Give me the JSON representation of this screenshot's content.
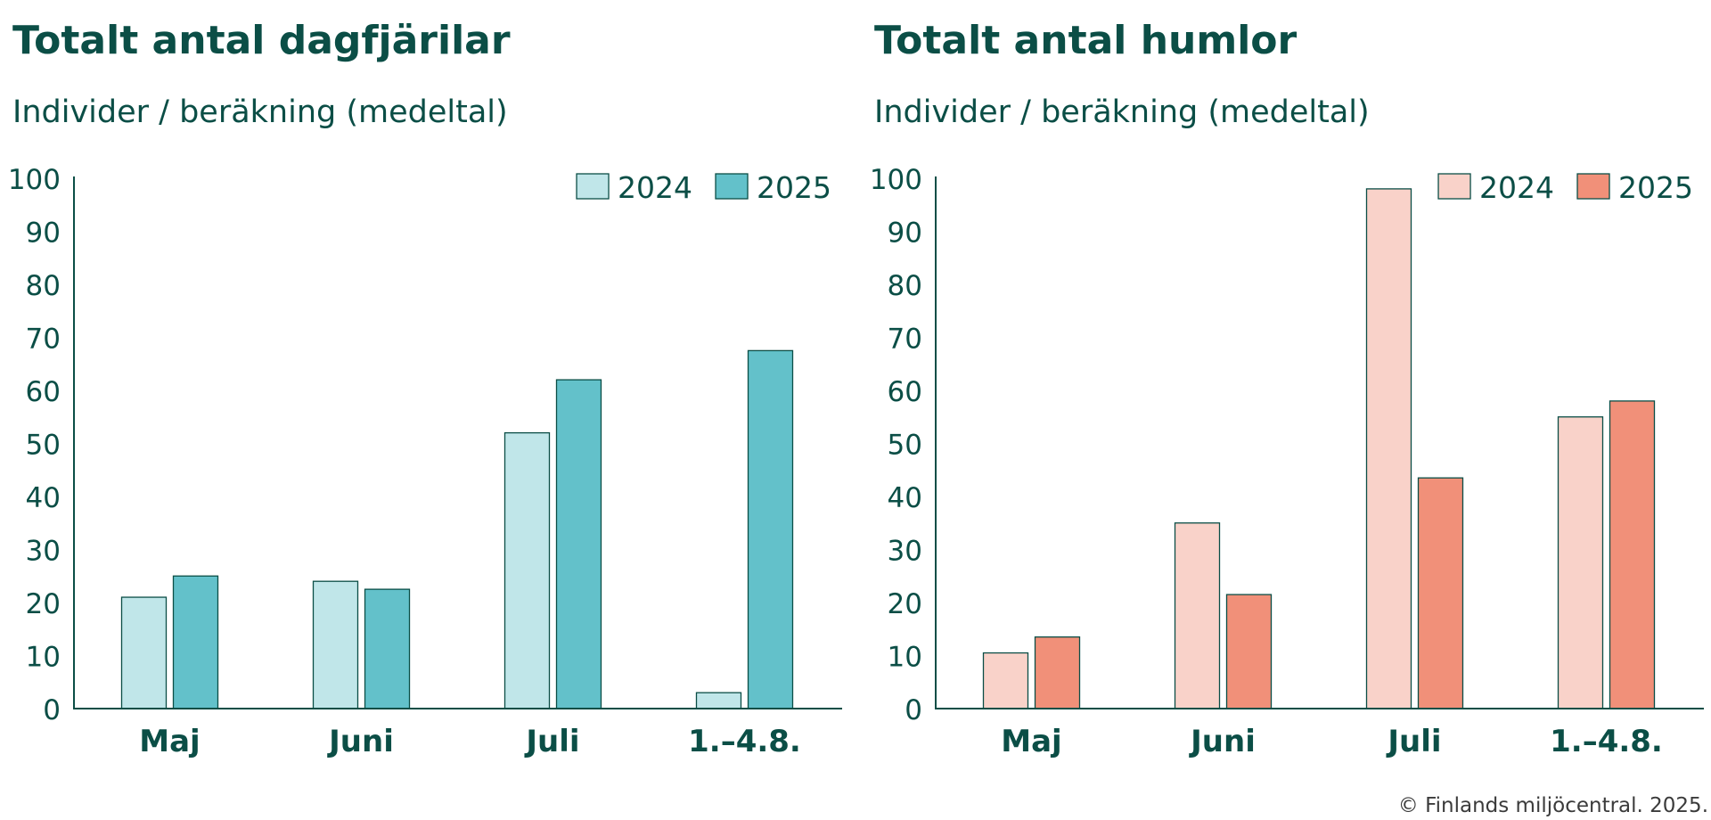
{
  "charts": [
    {
      "title": "Totalt antal dagfjärilar",
      "subtitle": "Individer / beräkning (medeltal)"
    },
    {
      "title": "Totalt antal humlor",
      "subtitle": "Individer / beräkning (medeltal)"
    }
  ],
  "chart_data": [
    {
      "type": "bar",
      "title": "Totalt antal dagfjärilar",
      "subtitle": "Individer / beräkning (medeltal)",
      "xlabel": "",
      "ylabel": "Individer / beräkning (medeltal)",
      "categories": [
        "Maj",
        "Juni",
        "Juli",
        "1.–4.8."
      ],
      "series": [
        {
          "name": "2024",
          "values": [
            21,
            24,
            52,
            3
          ],
          "color": "#c0e6e9"
        },
        {
          "name": "2025",
          "values": [
            25,
            22.5,
            62,
            67.5
          ],
          "color": "#63c1ca"
        }
      ],
      "ylim": [
        0,
        100
      ],
      "yticks": [
        0,
        10,
        20,
        30,
        40,
        50,
        60,
        70,
        80,
        90,
        100
      ],
      "grid": false,
      "legend_position": "top-right",
      "outline_color": "#0b4e46"
    },
    {
      "type": "bar",
      "title": "Totalt antal humlor",
      "subtitle": "Individer / beräkning (medeltal)",
      "xlabel": "",
      "ylabel": "Individer / beräkning (medeltal)",
      "categories": [
        "Maj",
        "Juni",
        "Juli",
        "1.–4.8."
      ],
      "series": [
        {
          "name": "2024",
          "values": [
            10.5,
            35,
            98,
            55
          ],
          "color": "#f9d2c9"
        },
        {
          "name": "2025",
          "values": [
            13.5,
            21.5,
            43.5,
            58
          ],
          "color": "#f19079"
        }
      ],
      "ylim": [
        0,
        100
      ],
      "yticks": [
        0,
        10,
        20,
        30,
        40,
        50,
        60,
        70,
        80,
        90,
        100
      ],
      "grid": false,
      "legend_position": "top-right",
      "outline_color": "#0b4e46"
    }
  ],
  "footer": {
    "copyright": "© Finlands miljöcentral. 2025."
  }
}
